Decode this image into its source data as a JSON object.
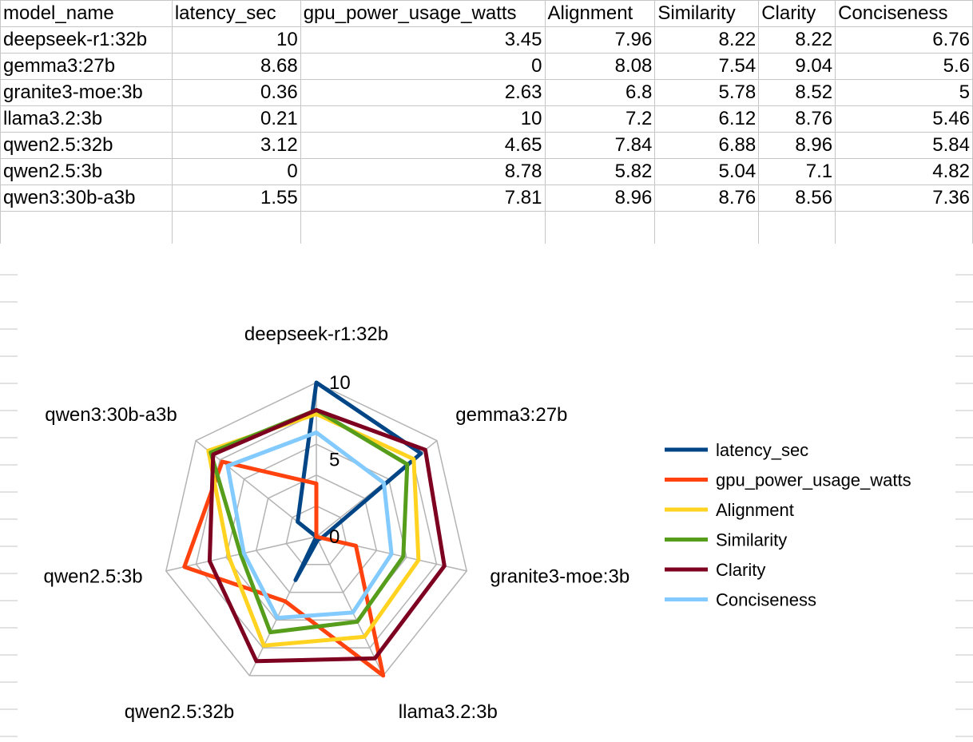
{
  "table": {
    "headers": [
      "model_name",
      "latency_sec",
      "gpu_power_usage_watts",
      "Alignment",
      "Similarity",
      "Clarity",
      "Conciseness"
    ],
    "rows": [
      [
        "deepseek-r1:32b",
        "10",
        "3.45",
        "7.96",
        "8.22",
        "8.22",
        "6.76"
      ],
      [
        "gemma3:27b",
        "8.68",
        "0",
        "8.08",
        "7.54",
        "9.04",
        "5.6"
      ],
      [
        "granite3-moe:3b",
        "0.36",
        "2.63",
        "6.8",
        "5.78",
        "8.52",
        "5"
      ],
      [
        "llama3.2:3b",
        "0.21",
        "10",
        "7.2",
        "6.12",
        "8.76",
        "5.46"
      ],
      [
        "qwen2.5:32b",
        "3.12",
        "4.65",
        "7.84",
        "6.88",
        "8.96",
        "5.84"
      ],
      [
        "qwen2.5:3b",
        "0",
        "8.78",
        "5.82",
        "5.04",
        "7.1",
        "4.82"
      ],
      [
        "qwen3:30b-a3b",
        "1.55",
        "7.81",
        "8.96",
        "8.76",
        "8.56",
        "7.36"
      ]
    ]
  },
  "chart_data": {
    "type": "radar",
    "categories": [
      "deepseek-r1:32b",
      "gemma3:27b",
      "granite3-moe:3b",
      "llama3.2:3b",
      "qwen2.5:32b",
      "qwen2.5:3b",
      "qwen3:30b-a3b"
    ],
    "ticks": [
      "0",
      "5",
      "10"
    ],
    "rlim": [
      0,
      10
    ],
    "grid_lines": true,
    "legend_position": "right",
    "series": [
      {
        "name": "latency_sec",
        "color": "#004586",
        "values": [
          10,
          8.68,
          0.36,
          0.21,
          3.12,
          0,
          1.55
        ]
      },
      {
        "name": "gpu_power_usage_watts",
        "color": "#ff420e",
        "values": [
          3.45,
          0,
          2.63,
          10,
          4.65,
          8.78,
          7.81
        ]
      },
      {
        "name": "Alignment",
        "color": "#ffd320",
        "values": [
          7.96,
          8.08,
          6.8,
          7.2,
          7.84,
          5.82,
          8.96
        ]
      },
      {
        "name": "Similarity",
        "color": "#579d1c",
        "values": [
          8.22,
          7.54,
          5.78,
          6.12,
          6.88,
          5.04,
          8.76
        ]
      },
      {
        "name": "Clarity",
        "color": "#7e0021",
        "values": [
          8.22,
          9.04,
          8.52,
          8.76,
          8.96,
          7.1,
          8.56
        ]
      },
      {
        "name": "Conciseness",
        "color": "#83caff",
        "values": [
          6.76,
          5.6,
          5,
          5.46,
          5.84,
          4.82,
          7.36
        ]
      }
    ]
  }
}
